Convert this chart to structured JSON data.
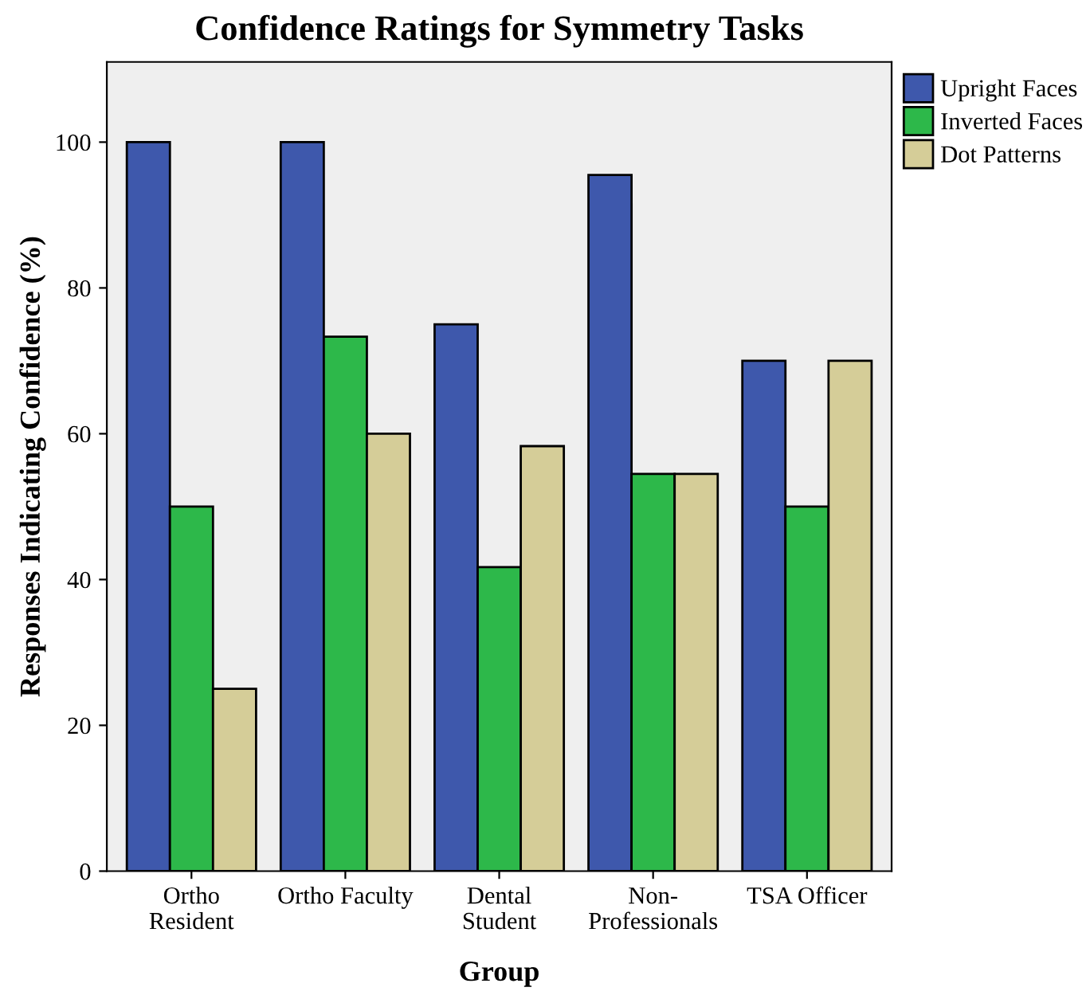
{
  "chart_data": {
    "type": "bar",
    "title": "Confidence Ratings for Symmetry Tasks",
    "xlabel": "Group",
    "ylabel": "Responses Indicating Confidence (%)",
    "categories": [
      "Ortho\nResident",
      "Ortho Faculty",
      "Dental\nStudent",
      "Non-\nProfessionals",
      "TSA Officer"
    ],
    "series": [
      {
        "name": "Upright Faces",
        "color": "#3e58ac",
        "values": [
          100,
          100,
          75,
          95.5,
          70
        ]
      },
      {
        "name": "Inverted Faces",
        "color": "#2db84a",
        "values": [
          50,
          73.3,
          41.7,
          54.5,
          50
        ]
      },
      {
        "name": "Dot Patterns",
        "color": "#d5cd98",
        "values": [
          25,
          60,
          58.3,
          54.5,
          70
        ]
      }
    ],
    "ylim": [
      0,
      111
    ],
    "yticks": [
      0,
      20,
      40,
      60,
      80,
      100
    ],
    "grid": false,
    "legend": "top right"
  }
}
